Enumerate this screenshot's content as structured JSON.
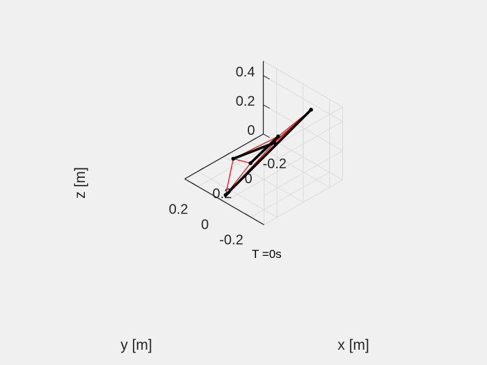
{
  "figure": {
    "background": "#f0f0f0"
  },
  "chart_data": {
    "type": "3d-line",
    "title": "",
    "xlabel": "x [m]",
    "ylabel": "y [m]",
    "zlabel": "z [m]",
    "x_ticks": [
      {
        "value": -0.2,
        "label": "-0.2"
      },
      {
        "value": 0,
        "label": "0"
      },
      {
        "value": 0.2,
        "label": "0.2"
      }
    ],
    "y_ticks": [
      {
        "value": -0.2,
        "label": "-0.2"
      },
      {
        "value": 0,
        "label": "0"
      },
      {
        "value": 0.2,
        "label": "0.2"
      }
    ],
    "z_ticks": [
      {
        "value": 0,
        "label": "0"
      },
      {
        "value": 0.2,
        "label": "0.2"
      },
      {
        "value": 0.4,
        "label": "0.4"
      }
    ],
    "xlim": [
      -0.3,
      0.3
    ],
    "ylim": [
      -0.3,
      0.3
    ],
    "zlim": [
      0,
      0.5
    ],
    "grid": true,
    "view": "isometric",
    "nodes": [
      {
        "id": "A",
        "x": 0.25,
        "y": 0.04,
        "z": 0.0
      },
      {
        "id": "B",
        "x": -0.16,
        "y": -0.2,
        "z": 0.5
      },
      {
        "id": "C",
        "x": -0.02,
        "y": 0.25,
        "z": 0.0
      },
      {
        "id": "D",
        "x": 0.2,
        "y": -0.28,
        "z": 0.5
      },
      {
        "id": "E",
        "x": 0.04,
        "y": 0.06,
        "z": 0.1
      },
      {
        "id": "F",
        "x": -0.05,
        "y": -0.06,
        "z": 0.3
      }
    ],
    "struts": [
      [
        "A",
        "B"
      ],
      [
        "C",
        "D"
      ],
      [
        "E",
        "F"
      ]
    ],
    "cables": [
      [
        "B",
        "D"
      ],
      [
        "A",
        "D"
      ],
      [
        "A",
        "C"
      ],
      [
        "B",
        "F"
      ],
      [
        "D",
        "F"
      ],
      [
        "B",
        "E"
      ],
      [
        "A",
        "E"
      ],
      [
        "C",
        "E"
      ],
      [
        "C",
        "F"
      ]
    ],
    "strut_color": "#000000",
    "cable_color": "#ff0000",
    "annotation": {
      "text": "T =0s",
      "x": 0.0,
      "y": 0.0,
      "z": 0.0
    }
  }
}
